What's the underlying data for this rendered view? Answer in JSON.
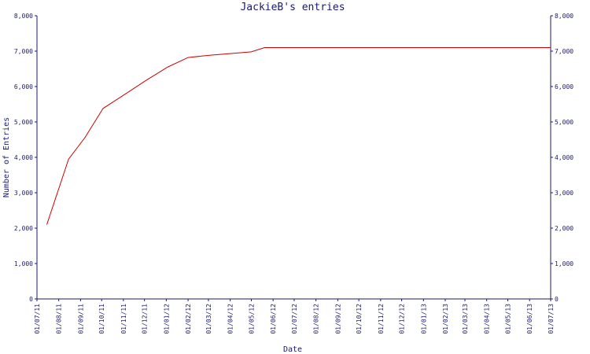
{
  "chart_data": {
    "type": "line",
    "title": "JackieB's entries",
    "xlabel": "Date",
    "ylabel": "Number of Entries",
    "ylim": [
      0,
      8000
    ],
    "yticks": [
      "0",
      "1,000",
      "2,000",
      "3,000",
      "4,000",
      "5,000",
      "6,000",
      "7,000",
      "8,000"
    ],
    "xticks": [
      "01/07/11",
      "01/08/11",
      "01/09/11",
      "01/10/11",
      "01/11/11",
      "01/12/11",
      "01/01/12",
      "01/02/12",
      "01/03/12",
      "01/04/12",
      "01/05/12",
      "01/06/12",
      "01/07/12",
      "01/08/12",
      "01/09/12",
      "01/10/12",
      "01/11/12",
      "01/12/12",
      "01/01/13",
      "01/02/13",
      "01/03/13",
      "01/04/13",
      "01/05/13",
      "01/06/13",
      "01/07/13"
    ],
    "grid": false,
    "series": [
      {
        "color": "#cc0000",
        "points": [
          {
            "x": "2011-07-15",
            "y": 2100
          },
          {
            "x": "2011-08-15",
            "y": 3950
          },
          {
            "x": "2011-09-07",
            "y": 4550
          },
          {
            "x": "2011-10-03",
            "y": 5380
          },
          {
            "x": "2011-11-03",
            "y": 5780
          },
          {
            "x": "2011-12-03",
            "y": 6170
          },
          {
            "x": "2012-01-03",
            "y": 6550
          },
          {
            "x": "2012-02-01",
            "y": 6820
          },
          {
            "x": "2012-03-01",
            "y": 6880
          },
          {
            "x": "2012-04-01",
            "y": 6930
          },
          {
            "x": "2012-05-01",
            "y": 6980
          },
          {
            "x": "2012-05-20",
            "y": 7100
          },
          {
            "x": "2013-07-01",
            "y": 7100
          }
        ]
      }
    ]
  },
  "colors": {
    "axis": "#1a1a6e",
    "line": "#cc0000"
  }
}
